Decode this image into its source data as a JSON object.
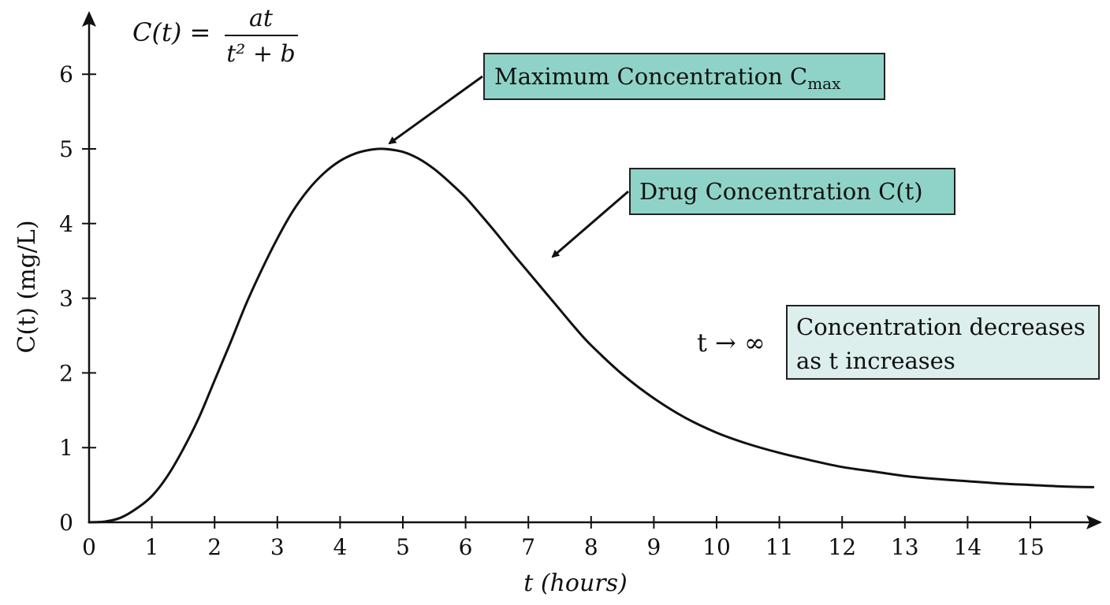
{
  "chart_data": {
    "type": "line",
    "formula": {
      "lhs": "C(t) =",
      "numerator": "at",
      "denominator": "t² + b"
    },
    "xlabel": "t (hours)",
    "ylabel": "C(t) (mg/L)",
    "xlim": [
      0,
      16
    ],
    "ylim": [
      0,
      6.5
    ],
    "x_ticks": [
      0,
      1,
      2,
      3,
      4,
      5,
      6,
      7,
      8,
      9,
      10,
      11,
      12,
      13,
      14,
      15
    ],
    "y_ticks": [
      0,
      1,
      2,
      3,
      4,
      5,
      6
    ],
    "grid": false,
    "series": [
      {
        "x": [
          0,
          0.25,
          0.5,
          0.75,
          1,
          1.25,
          1.5,
          1.75,
          2,
          2.25,
          2.5,
          2.75,
          3,
          3.25,
          3.5,
          3.75,
          4,
          4.25,
          4.5,
          4.7,
          5,
          5.25,
          5.5,
          5.75,
          6,
          6.25,
          6.5,
          6.75,
          7,
          7.25,
          7.5,
          7.75,
          8,
          8.5,
          9,
          9.5,
          10,
          10.5,
          11,
          11.5,
          12,
          12.5,
          13,
          13.5,
          14,
          14.5,
          15,
          15.5,
          16
        ],
        "y": [
          0,
          0.01,
          0.06,
          0.18,
          0.35,
          0.62,
          0.98,
          1.4,
          1.9,
          2.4,
          2.92,
          3.38,
          3.8,
          4.17,
          4.46,
          4.68,
          4.84,
          4.94,
          4.99,
          5.0,
          4.96,
          4.87,
          4.73,
          4.55,
          4.35,
          4.11,
          3.86,
          3.6,
          3.35,
          3.1,
          2.85,
          2.6,
          2.37,
          1.98,
          1.66,
          1.4,
          1.2,
          1.05,
          0.93,
          0.83,
          0.74,
          0.68,
          0.62,
          0.58,
          0.55,
          0.52,
          0.5,
          0.48,
          0.47
        ]
      }
    ],
    "annotations": [
      {
        "id": "max",
        "text": "Maximum Concentration C",
        "subscript": "max",
        "target": [
          4.7,
          5.0
        ],
        "style": "filled"
      },
      {
        "id": "drug",
        "text": "Drug Concentration C(t)",
        "target": [
          7.35,
          3.5
        ],
        "style": "filled"
      },
      {
        "id": "limit",
        "prefix": "t → ∞",
        "lines": [
          "Concentration decreases",
          "as t increases"
        ],
        "style": "light"
      }
    ],
    "colors": {
      "line": "#111111",
      "box_fill": "#8fd3c8",
      "box_fill_light": "#dcefec",
      "box_border": "#222222"
    }
  }
}
